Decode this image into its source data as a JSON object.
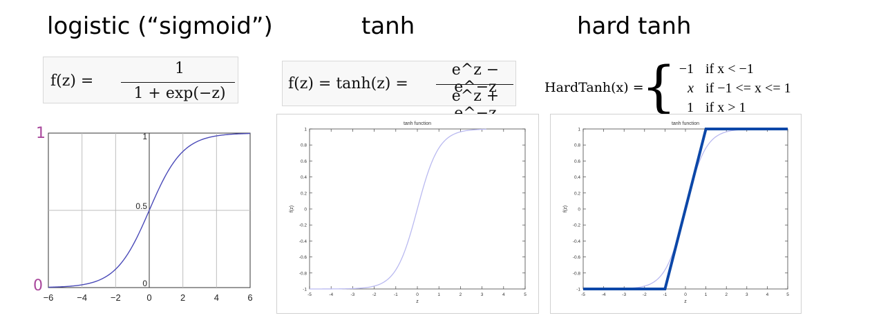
{
  "headings": {
    "logistic": "logistic (“sigmoid”)",
    "tanh": "tanh",
    "hardtanh": "hard tanh"
  },
  "formulas": {
    "logistic_lhs": "f(z) =",
    "logistic_num": "1",
    "logistic_den": "1 + exp(−z)",
    "tanh_lhs": "f(z) = tanh(z) =",
    "tanh_num": "e^z − e^−z",
    "tanh_den": "e^z + e^−z",
    "hardtanh_lhs": "HardTanh(x) =",
    "hardtanh_cases": [
      {
        "value": "−1",
        "condition": "if x < −1"
      },
      {
        "value": "x",
        "condition": "if −1 <= x <= 1"
      },
      {
        "value": "1",
        "condition": "if x > 1"
      }
    ]
  },
  "corner_labels": {
    "logistic_top": "1",
    "logistic_bottom": "0",
    "tanh_top": "1",
    "tanh_bottom": "−1"
  },
  "colors": {
    "sigmoid_curve": "#4a4ab8",
    "tanh_curve": "#b9b9f0",
    "hardtanh_line": "#0c47a8",
    "label_purple": "#a9489c"
  },
  "chart_data": [
    {
      "type": "line",
      "xlim": [
        -6,
        6
      ],
      "ylim": [
        0,
        1
      ],
      "x_ticks": [
        "−6",
        "−4",
        "−2",
        "0",
        "2",
        "4",
        "6"
      ],
      "y_ticks_inline": [
        "1",
        "0.5",
        "0"
      ],
      "grid": true,
      "series": [
        {
          "function": "logistic",
          "x_start": -6,
          "x_end": 6
        }
      ]
    },
    {
      "type": "line",
      "title": "tanh function",
      "xlabel": "z",
      "ylabel": "f(z)",
      "xlim": [
        -5,
        5
      ],
      "ylim": [
        -1,
        1
      ],
      "x_ticks": [
        "-5",
        "-4",
        "-3",
        "-2",
        "-1",
        "0",
        "1",
        "2",
        "3",
        "4",
        "5"
      ],
      "y_ticks": [
        "1",
        "0.8",
        "0.6",
        "0.4",
        "0.2",
        "0",
        "-0.2",
        "-0.4",
        "-0.6",
        "-0.8",
        "-1"
      ],
      "series": [
        {
          "function": "tanh",
          "x_start": -5,
          "x_end": 3.2
        }
      ]
    },
    {
      "type": "line",
      "title": "tanh function",
      "xlabel": "z",
      "ylabel": "f(z)",
      "xlim": [
        -5,
        5
      ],
      "ylim": [
        -1,
        1
      ],
      "x_ticks": [
        "-5",
        "-4",
        "-3",
        "-2",
        "-1",
        "0",
        "1",
        "2",
        "3",
        "4",
        "5"
      ],
      "y_ticks": [
        "1",
        "0.8",
        "0.6",
        "0.4",
        "0.2",
        "0",
        "-0.2",
        "-0.4",
        "-0.6",
        "-0.8",
        "-1"
      ],
      "series": [
        {
          "function": "tanh",
          "x_start": -5,
          "x_end": 3.2
        },
        {
          "function": "hardtanh",
          "points": [
            [
              -5,
              -1
            ],
            [
              -1,
              -1
            ],
            [
              1,
              1
            ],
            [
              5,
              1
            ]
          ]
        }
      ]
    }
  ]
}
